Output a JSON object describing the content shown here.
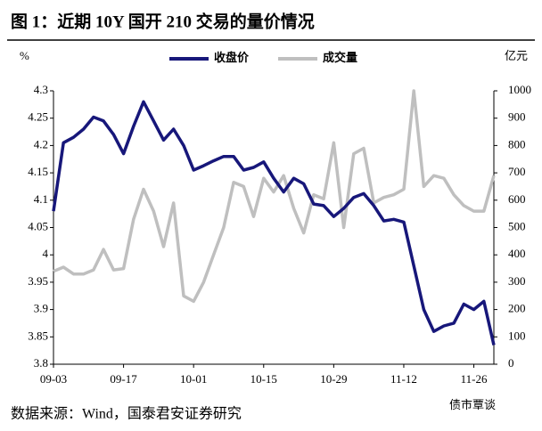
{
  "chart_data": {
    "type": "line",
    "title": "图 1：近期 10Y 国开 210 交易的量价情况",
    "y_label": "%",
    "y2_label": "亿元",
    "source": "数据来源：Wind，国泰君安证券研究",
    "watermark": "债市覃谈",
    "categories": [
      "09-03",
      null,
      null,
      null,
      null,
      null,
      null,
      "09-17",
      null,
      null,
      null,
      null,
      null,
      null,
      "10-01",
      null,
      null,
      null,
      null,
      null,
      null,
      "10-15",
      null,
      null,
      null,
      null,
      null,
      null,
      "10-29",
      null,
      null,
      null,
      null,
      null,
      null,
      "11-12",
      null,
      null,
      null,
      null,
      null,
      null,
      "11-26",
      null,
      null
    ],
    "series": [
      {
        "name": "收盘价",
        "color": "#17177a",
        "values": [
          4.08,
          4.205,
          4.215,
          4.23,
          4.252,
          4.245,
          4.22,
          4.185,
          4.235,
          4.28,
          4.245,
          4.21,
          4.23,
          4.2,
          4.155,
          4.163,
          4.172,
          4.18,
          4.18,
          4.155,
          4.16,
          4.17,
          4.14,
          4.115,
          4.14,
          4.13,
          4.093,
          4.09,
          4.07,
          4.085,
          4.105,
          4.112,
          4.09,
          4.062,
          4.065,
          4.06,
          3.98,
          3.9,
          3.86,
          3.87,
          3.875,
          3.91,
          3.9,
          3.915,
          3.835
        ]
      },
      {
        "name": "成交量",
        "color": "#bfbfbf",
        "axis": "y2",
        "values": [
          340,
          355,
          330,
          330,
          345,
          420,
          345,
          350,
          530,
          640,
          560,
          430,
          590,
          250,
          230,
          300,
          400,
          500,
          665,
          650,
          540,
          680,
          630,
          690,
          570,
          480,
          620,
          605,
          810,
          500,
          770,
          790,
          590,
          610,
          620,
          640,
          1000,
          650,
          690,
          680,
          620,
          580,
          560,
          560,
          690
        ]
      }
    ],
    "ylim": [
      3.8,
      4.3
    ],
    "yticks": [
      3.8,
      3.85,
      3.9,
      3.95,
      4,
      4.05,
      4.1,
      4.15,
      4.2,
      4.25,
      4.3
    ],
    "y2lim": [
      0,
      1000
    ],
    "y2ticks": [
      0,
      100,
      200,
      300,
      400,
      500,
      600,
      700,
      800,
      900,
      1000
    ],
    "grid": false
  }
}
